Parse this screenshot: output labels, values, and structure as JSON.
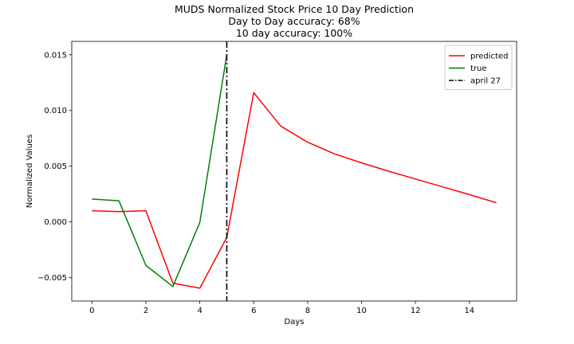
{
  "chart_data": {
    "type": "line",
    "title_lines": [
      "MUDS Normalized Stock Price 10 Day Prediction",
      "Day to Day accuracy: 68%",
      "10 day accuracy: 100%"
    ],
    "xlabel": "Days",
    "ylabel": "Normalized Values",
    "xlim": [
      -0.75,
      15.75
    ],
    "ylim": [
      -0.0071,
      0.0162
    ],
    "xticks": [
      0,
      2,
      4,
      6,
      8,
      10,
      12,
      14
    ],
    "yticks": [
      -0.005,
      0.0,
      0.005,
      0.01,
      0.015
    ],
    "xtick_labels": [
      "0",
      "2",
      "4",
      "6",
      "8",
      "10",
      "12",
      "14"
    ],
    "ytick_labels": [
      "−0.005",
      "0.000",
      "0.005",
      "0.010",
      "0.015"
    ],
    "grid": false,
    "legend_position": "top-right",
    "series": [
      {
        "name": "predicted",
        "color": "#ff0000",
        "style": "solid",
        "x": [
          0,
          1,
          2,
          3,
          4,
          5,
          6,
          7,
          8,
          9,
          10,
          11,
          12,
          13,
          14,
          15
        ],
        "y": [
          0.001,
          0.00092,
          0.001,
          -0.0055,
          -0.00595,
          -0.0014,
          0.0116,
          0.0086,
          0.00715,
          0.0061,
          0.0053,
          0.00455,
          0.00385,
          0.00315,
          0.00245,
          0.00172
        ]
      },
      {
        "name": "true",
        "color": "#008000",
        "style": "solid",
        "x": [
          0,
          1,
          2,
          3,
          4,
          5
        ],
        "y": [
          0.00205,
          0.0019,
          -0.0039,
          -0.0058,
          -5e-05,
          0.015
        ]
      }
    ],
    "vlines": [
      {
        "name": "april 27",
        "x": 5,
        "color": "#000000",
        "style": "dashdot"
      }
    ]
  }
}
